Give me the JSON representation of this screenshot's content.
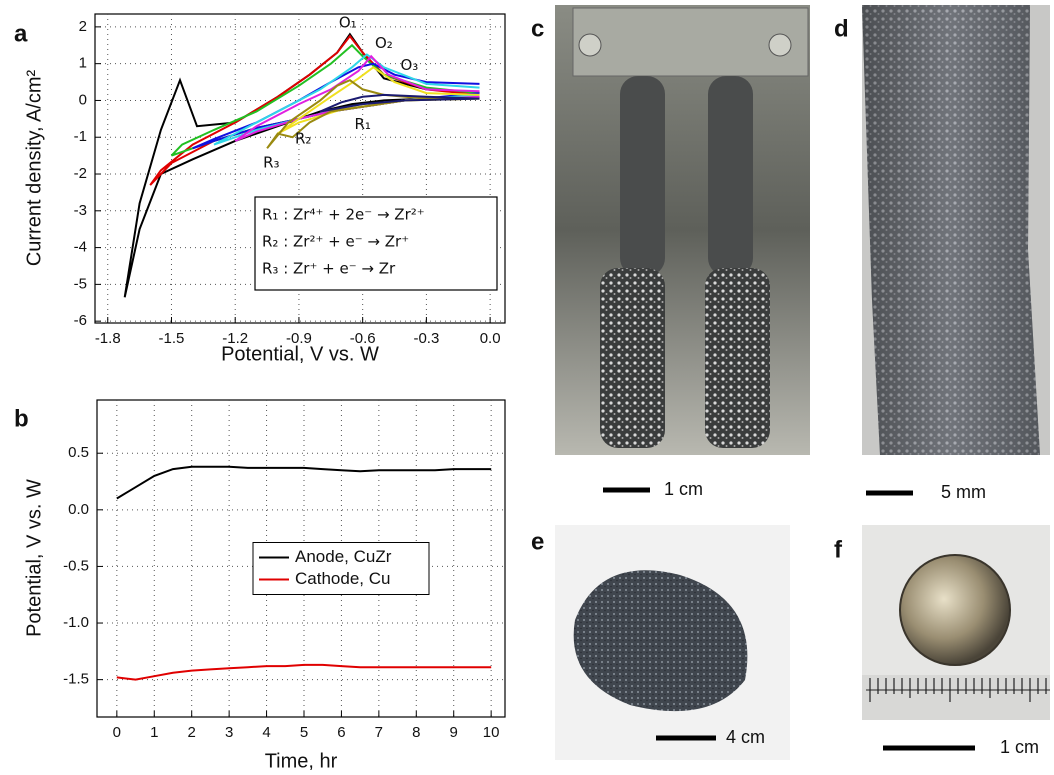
{
  "chart_data": [
    {
      "type": "line",
      "panel": "a",
      "xlabel": "Potential, V vs. W",
      "ylabel": "Current density, A/cm²",
      "xlim": [
        -1.86,
        0.07
      ],
      "ylim": [
        -6.05,
        2.35
      ],
      "xticks": [
        -1.8,
        -1.5,
        -1.2,
        -0.9,
        -0.6,
        -0.3,
        {
          "value": 0,
          "label": "0.0"
        }
      ],
      "yticks": [
        -6,
        -5,
        -4,
        -3,
        -2,
        -1,
        0,
        1,
        2
      ],
      "grid": true,
      "series": [
        {
          "color": "#000000",
          "x": [
            -0.05,
            -0.3,
            -0.5,
            -0.65,
            -0.8,
            -1.0,
            -1.2,
            -1.4,
            -1.55,
            -1.65,
            -1.72,
            -1.65,
            -1.55,
            -1.46,
            -1.38,
            -1.2,
            -1.0,
            -0.85,
            -0.72,
            -0.66,
            -0.6,
            -0.5,
            -0.3,
            -0.05
          ],
          "values": [
            0.1,
            0.05,
            0,
            -0.1,
            -0.3,
            -0.7,
            -1.1,
            -1.6,
            -2.0,
            -3.5,
            -5.35,
            -2.8,
            -0.8,
            0.55,
            -0.7,
            -0.6,
            0.1,
            0.7,
            1.3,
            1.8,
            1.3,
            0.6,
            0.3,
            0.2
          ]
        },
        {
          "color": "#e00000",
          "x": [
            -0.05,
            -0.4,
            -0.75,
            -0.9,
            -1.1,
            -1.3,
            -1.5,
            -1.6,
            -1.55,
            -1.4,
            -1.2,
            -1.0,
            -0.85,
            -0.72,
            -0.66,
            -0.6,
            -0.5,
            -0.3,
            -0.05
          ],
          "values": [
            0.1,
            0.0,
            -0.3,
            -0.5,
            -0.75,
            -1.1,
            -1.7,
            -2.3,
            -1.9,
            -1.2,
            -0.6,
            0.1,
            0.7,
            1.3,
            1.75,
            1.3,
            0.7,
            0.3,
            0.15
          ]
        },
        {
          "color": "#22c022",
          "x": [
            -0.05,
            -0.4,
            -0.75,
            -0.9,
            -1.1,
            -1.3,
            -1.5,
            -1.45,
            -1.3,
            -1.1,
            -0.9,
            -0.75,
            -0.65,
            -0.6,
            -0.5,
            -0.3,
            -0.05
          ],
          "values": [
            0.1,
            0.0,
            -0.3,
            -0.5,
            -0.75,
            -1.1,
            -1.5,
            -1.2,
            -0.8,
            -0.3,
            0.4,
            1.0,
            1.5,
            1.2,
            0.7,
            0.35,
            0.2
          ]
        },
        {
          "color": "#1010e0",
          "x": [
            -0.05,
            -0.4,
            -0.75,
            -0.9,
            -1.1,
            -1.3,
            -1.4,
            -1.3,
            -1.1,
            -0.9,
            -0.75,
            -0.62,
            -0.55,
            -0.45,
            -0.3,
            -0.05
          ],
          "values": [
            0.2,
            0.0,
            -0.3,
            -0.5,
            -0.75,
            -1.1,
            -1.3,
            -1.05,
            -0.6,
            0.0,
            0.5,
            0.9,
            1.0,
            0.7,
            0.5,
            0.45
          ]
        },
        {
          "color": "#30d8e8",
          "x": [
            -0.05,
            -0.4,
            -0.75,
            -0.9,
            -1.1,
            -1.3,
            -1.2,
            -1.0,
            -0.8,
            -0.65,
            -0.58,
            -0.5,
            -0.3,
            -0.05
          ],
          "values": [
            0.15,
            0.0,
            -0.3,
            -0.5,
            -0.8,
            -1.2,
            -0.9,
            -0.3,
            0.3,
            0.9,
            1.25,
            0.9,
            0.45,
            0.35
          ]
        },
        {
          "color": "#e020e0",
          "x": [
            -0.05,
            -0.4,
            -0.75,
            -0.9,
            -1.1,
            -1.2,
            -1.1,
            -0.9,
            -0.75,
            -0.62,
            -0.56,
            -0.48,
            -0.3,
            -0.05
          ],
          "values": [
            0.1,
            0.0,
            -0.3,
            -0.5,
            -0.85,
            -1.1,
            -0.7,
            -0.1,
            0.3,
            0.8,
            1.2,
            0.7,
            0.3,
            0.25
          ]
        },
        {
          "color": "#f0e020",
          "x": [
            -0.05,
            -0.4,
            -0.7,
            -0.9,
            -1.0,
            -0.9,
            -0.75,
            -0.62,
            -0.55,
            -0.45,
            -0.3,
            -0.05
          ],
          "values": [
            0.05,
            0.0,
            -0.25,
            -0.6,
            -0.9,
            -0.5,
            0.1,
            0.6,
            0.9,
            0.5,
            0.2,
            0.15
          ]
        },
        {
          "color": "#9a8a10",
          "x": [
            -0.05,
            -0.4,
            -0.75,
            -0.85,
            -0.93,
            -1.0,
            -1.05,
            -0.95,
            -0.8,
            -0.72,
            -0.66,
            -0.6,
            -0.5,
            -0.3,
            -0.05
          ],
          "values": [
            0.05,
            0.0,
            -0.3,
            -0.6,
            -1.0,
            -0.9,
            -1.3,
            -0.6,
            0.0,
            0.4,
            0.55,
            0.3,
            0.15,
            0.05,
            0.05
          ]
        },
        {
          "color": "#1a1a70",
          "x": [
            -0.05,
            -0.4,
            -0.6,
            -0.75,
            -0.8,
            -0.7,
            -0.6,
            -0.5,
            -0.3,
            -0.05
          ],
          "values": [
            0.05,
            0.0,
            -0.1,
            -0.25,
            -0.3,
            -0.05,
            0.1,
            0.15,
            0.1,
            0.05
          ]
        }
      ],
      "annotations": [
        "O₁",
        "O₂",
        "O₃",
        "R₁",
        "R₂",
        "R₃"
      ],
      "reactions": [
        "R₁ : Zr⁴⁺ + 2e⁻ → Zr²⁺",
        "R₂ : Zr²⁺ + e⁻ → Zr⁺",
        "R₃ : Zr⁺ + e⁻ → Zr"
      ]
    },
    {
      "type": "line",
      "panel": "b",
      "xlabel": "Time, hr",
      "ylabel": "Potential, V vs. W",
      "xlim": [
        -0.53,
        10.37
      ],
      "ylim": [
        -1.83,
        0.97
      ],
      "xticks": [
        0,
        1,
        2,
        3,
        4,
        5,
        6,
        7,
        8,
        9,
        10
      ],
      "yticks": [
        {
          "value": 0.5,
          "label": "0.5"
        },
        {
          "value": 0,
          "label": "0.0"
        },
        -0.5,
        {
          "value": -1,
          "label": "-1.0"
        },
        -1.5
      ],
      "grid": true,
      "legend": "center",
      "x": [
        0,
        0.5,
        1,
        1.5,
        2,
        2.5,
        3,
        3.5,
        4,
        4.5,
        5,
        5.5,
        6,
        6.5,
        7,
        7.5,
        8,
        8.5,
        9,
        9.5,
        10
      ],
      "series": [
        {
          "name": "Anode, CuZr",
          "color": "#000000",
          "values": [
            0.1,
            0.2,
            0.3,
            0.36,
            0.38,
            0.38,
            0.38,
            0.37,
            0.37,
            0.37,
            0.37,
            0.36,
            0.35,
            0.34,
            0.35,
            0.35,
            0.35,
            0.35,
            0.36,
            0.36,
            0.36
          ]
        },
        {
          "name": "Cathode, Cu",
          "color": "#e00000",
          "values": [
            -1.48,
            -1.5,
            -1.47,
            -1.44,
            -1.42,
            -1.41,
            -1.4,
            -1.39,
            -1.38,
            -1.38,
            -1.37,
            -1.37,
            -1.38,
            -1.39,
            -1.39,
            -1.39,
            -1.39,
            -1.39,
            -1.39,
            -1.39,
            -1.39
          ]
        }
      ]
    }
  ],
  "photos": [
    {
      "panel": "c",
      "scale_bar": "1 cm"
    },
    {
      "panel": "d",
      "scale_bar": "5 mm"
    },
    {
      "panel": "e",
      "scale_bar": "4 cm"
    },
    {
      "panel": "f",
      "scale_bar": "1 cm"
    }
  ]
}
